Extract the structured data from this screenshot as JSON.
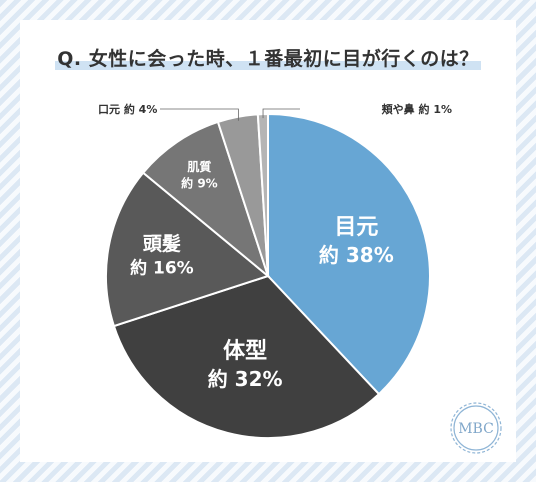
{
  "title": "Q. 女性に会った時、１番最初に目が行くのは？",
  "logo_text": "MBC",
  "colors": {
    "highlight": "#cfe2f3",
    "background_stripe": "#dce8f4"
  },
  "chart_data": {
    "type": "pie",
    "title": "Q. 女性に会った時、１番最初に目が行くのは？",
    "slices": [
      {
        "name": "目元",
        "prefix": "約",
        "value": 38,
        "color": "#67a6d4",
        "label": "約 38%"
      },
      {
        "name": "体型",
        "prefix": "約",
        "value": 32,
        "color": "#404040",
        "label": "約 32%"
      },
      {
        "name": "頭髪",
        "prefix": "約",
        "value": 16,
        "color": "#595959",
        "label": "約 16%"
      },
      {
        "name": "肌質",
        "prefix": "約",
        "value": 9,
        "color": "#767676",
        "label": "約 9%"
      },
      {
        "name": "口元",
        "prefix": "約",
        "value": 4,
        "color": "#999999",
        "label": "約 4%"
      },
      {
        "name": "頬や鼻",
        "prefix": "約",
        "value": 1,
        "color": "#b5b5b5",
        "label": "約 1%"
      }
    ],
    "unit": "%"
  }
}
